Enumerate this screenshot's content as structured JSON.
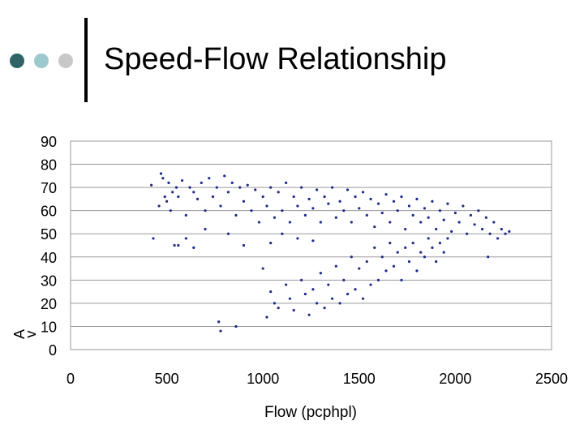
{
  "slide": {
    "title": "Speed-Flow Relationship",
    "bullet_colors": [
      "#2e6468",
      "#9cc9ce",
      "#c8c8c8"
    ]
  },
  "chart_data": {
    "type": "scatter",
    "title": "Speed-Flow Relationship",
    "xlabel": "Flow  (pcphpl)",
    "ylabel": "A\nv",
    "xlim": [
      0,
      2500
    ],
    "ylim": [
      0,
      90
    ],
    "x_ticks": [
      0,
      500,
      1000,
      1500,
      2000,
      2500
    ],
    "y_ticks": [
      0,
      10,
      20,
      30,
      40,
      50,
      60,
      70,
      80,
      90
    ],
    "grid": true,
    "marker_color": "#1f2a8a",
    "series": [
      {
        "points": [
          [
            420,
            71
          ],
          [
            430,
            48
          ],
          [
            460,
            62
          ],
          [
            470,
            76
          ],
          [
            480,
            74
          ],
          [
            490,
            66
          ],
          [
            500,
            64
          ],
          [
            510,
            72
          ],
          [
            520,
            60
          ],
          [
            530,
            68
          ],
          [
            540,
            45
          ],
          [
            550,
            70
          ],
          [
            560,
            66
          ],
          [
            580,
            73
          ],
          [
            600,
            58
          ],
          [
            620,
            70
          ],
          [
            640,
            68
          ],
          [
            660,
            65
          ],
          [
            680,
            72
          ],
          [
            700,
            60
          ],
          [
            720,
            74
          ],
          [
            740,
            66
          ],
          [
            760,
            70
          ],
          [
            780,
            62
          ],
          [
            800,
            75
          ],
          [
            820,
            68
          ],
          [
            840,
            72
          ],
          [
            860,
            58
          ],
          [
            880,
            70
          ],
          [
            900,
            64
          ],
          [
            920,
            71
          ],
          [
            940,
            60
          ],
          [
            960,
            69
          ],
          [
            980,
            55
          ],
          [
            1000,
            66
          ],
          [
            1020,
            62
          ],
          [
            1040,
            70
          ],
          [
            1060,
            57
          ],
          [
            1080,
            68
          ],
          [
            1100,
            60
          ],
          [
            1120,
            72
          ],
          [
            1140,
            55
          ],
          [
            1160,
            66
          ],
          [
            1180,
            62
          ],
          [
            1200,
            70
          ],
          [
            1220,
            58
          ],
          [
            1240,
            65
          ],
          [
            1260,
            61
          ],
          [
            1280,
            69
          ],
          [
            1300,
            55
          ],
          [
            1320,
            66
          ],
          [
            1340,
            63
          ],
          [
            1360,
            70
          ],
          [
            1380,
            57
          ],
          [
            1400,
            64
          ],
          [
            1420,
            60
          ],
          [
            1440,
            69
          ],
          [
            1460,
            55
          ],
          [
            1480,
            66
          ],
          [
            1500,
            61
          ],
          [
            1520,
            68
          ],
          [
            1540,
            58
          ],
          [
            1560,
            65
          ],
          [
            1580,
            53
          ],
          [
            1600,
            63
          ],
          [
            1620,
            59
          ],
          [
            1640,
            67
          ],
          [
            1660,
            55
          ],
          [
            1680,
            64
          ],
          [
            1700,
            60
          ],
          [
            1720,
            66
          ],
          [
            1740,
            52
          ],
          [
            1760,
            62
          ],
          [
            1780,
            58
          ],
          [
            1800,
            65
          ],
          [
            1820,
            55
          ],
          [
            1840,
            61
          ],
          [
            1860,
            57
          ],
          [
            1880,
            64
          ],
          [
            1900,
            52
          ],
          [
            1920,
            60
          ],
          [
            1940,
            56
          ],
          [
            1960,
            63
          ],
          [
            1980,
            51
          ],
          [
            2000,
            59
          ],
          [
            2020,
            55
          ],
          [
            2040,
            62
          ],
          [
            2060,
            50
          ],
          [
            2080,
            58
          ],
          [
            2100,
            54
          ],
          [
            2120,
            60
          ],
          [
            2140,
            52
          ],
          [
            2160,
            57
          ],
          [
            2180,
            50
          ],
          [
            2200,
            55
          ],
          [
            2220,
            48
          ],
          [
            2240,
            52
          ],
          [
            2260,
            50
          ],
          [
            2280,
            51
          ],
          [
            2170,
            40
          ],
          [
            770,
            12
          ],
          [
            780,
            8
          ],
          [
            860,
            10
          ],
          [
            1000,
            35
          ],
          [
            1020,
            14
          ],
          [
            1040,
            25
          ],
          [
            1060,
            20
          ],
          [
            1080,
            18
          ],
          [
            1120,
            28
          ],
          [
            1140,
            22
          ],
          [
            1160,
            17
          ],
          [
            1200,
            30
          ],
          [
            1220,
            24
          ],
          [
            1240,
            15
          ],
          [
            1260,
            26
          ],
          [
            1280,
            20
          ],
          [
            1300,
            33
          ],
          [
            1320,
            18
          ],
          [
            1340,
            28
          ],
          [
            1360,
            22
          ],
          [
            1380,
            36
          ],
          [
            1400,
            20
          ],
          [
            1420,
            30
          ],
          [
            1440,
            24
          ],
          [
            1460,
            40
          ],
          [
            1480,
            26
          ],
          [
            1500,
            35
          ],
          [
            1520,
            22
          ],
          [
            1540,
            38
          ],
          [
            1560,
            28
          ],
          [
            1580,
            44
          ],
          [
            1600,
            30
          ],
          [
            1620,
            40
          ],
          [
            1640,
            34
          ],
          [
            1660,
            46
          ],
          [
            1680,
            36
          ],
          [
            1700,
            42
          ],
          [
            1720,
            30
          ],
          [
            1740,
            44
          ],
          [
            1760,
            38
          ],
          [
            1780,
            46
          ],
          [
            1800,
            34
          ],
          [
            1820,
            42
          ],
          [
            1840,
            40
          ],
          [
            1860,
            48
          ],
          [
            1880,
            44
          ],
          [
            1900,
            38
          ],
          [
            1920,
            46
          ],
          [
            1940,
            42
          ],
          [
            1960,
            48
          ],
          [
            600,
            48
          ],
          [
            560,
            45
          ],
          [
            640,
            44
          ],
          [
            700,
            52
          ],
          [
            820,
            50
          ],
          [
            900,
            45
          ],
          [
            1040,
            46
          ],
          [
            1100,
            50
          ],
          [
            1180,
            48
          ],
          [
            1260,
            47
          ]
        ]
      }
    ]
  }
}
